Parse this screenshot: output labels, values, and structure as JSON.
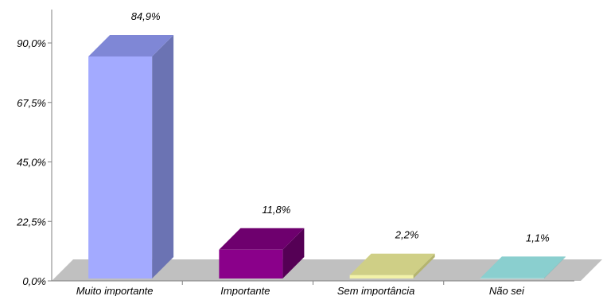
{
  "chart_data": {
    "type": "bar",
    "title": "",
    "xlabel": "",
    "ylabel": "",
    "categories": [
      "Muito importante",
      "Importante",
      "Sem importância",
      "Não sei"
    ],
    "values": [
      84.9,
      11.8,
      2.2,
      1.1
    ],
    "value_labels": [
      "84,9%",
      "11,8%",
      "2,2%",
      "1,1%"
    ],
    "ylim": [
      0,
      90
    ],
    "yticks": [
      0,
      22.5,
      45,
      67.5,
      90
    ],
    "ytick_labels": [
      "0,0%",
      "22,5%",
      "45,0%",
      "67,5%",
      "90,0%"
    ],
    "grid": false,
    "legend": false,
    "style": "3d-bar",
    "colors": {
      "bars": [
        {
          "front": "#A3AAFF",
          "top": "#7F87D6",
          "side": "#6B73B3"
        },
        {
          "front": "#8A008A",
          "top": "#6E006E",
          "side": "#550055"
        },
        {
          "front": "#F2F2A8",
          "top": "#CFCF86",
          "side": "#B4B46E"
        },
        {
          "front": "#A8E3E3",
          "top": "#8ACFCF",
          "side": "#72B8B8"
        }
      ],
      "floor": "#C0C0C0",
      "axis": "#808080"
    }
  }
}
